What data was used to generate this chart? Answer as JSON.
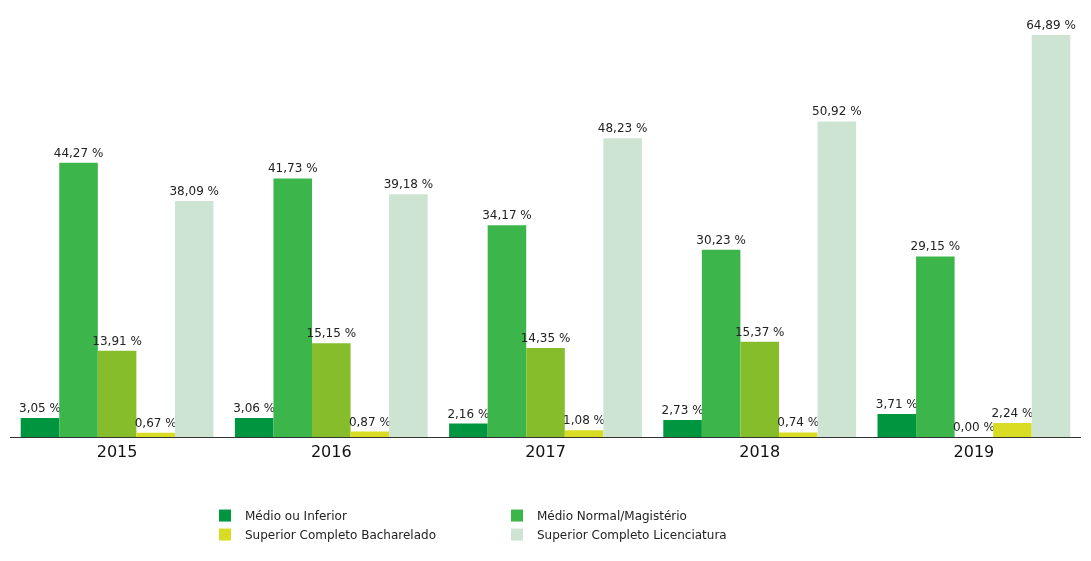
{
  "chart_data": {
    "type": "bar",
    "categories": [
      "2015",
      "2016",
      "2017",
      "2018",
      "2019"
    ],
    "legend": "bottom",
    "series": [
      {
        "name": "Médio ou Inferior",
        "color": "#009640",
        "values": [
          3.05,
          3.06,
          2.16,
          2.73,
          3.71
        ],
        "value_labels": [
          "3,05 %",
          "3,06 %",
          "2,16 %",
          "2,73 %",
          "3,71 %"
        ]
      },
      {
        "name": "Médio Normal/Magistério",
        "color": "#3cb54a",
        "values": [
          44.27,
          41.73,
          34.17,
          30.23,
          29.15
        ],
        "value_labels": [
          "44,27 %",
          "41,73 %",
          "34,17 %",
          "30,23 %",
          "29,15 %"
        ]
      },
      {
        "color": "#86bd2a",
        "values": [
          13.91,
          15.15,
          14.35,
          15.37,
          0
        ],
        "value_labels": [
          "13,91 %",
          "15,15 %",
          "14,35 %",
          "15,37 %",
          "0,00 %"
        ]
      },
      {
        "name": "Superior Completo Bacharelado",
        "color": "#d8dc22",
        "values": [
          0.67,
          0.87,
          1.08,
          0.74,
          2.24
        ],
        "value_labels": [
          "0,67 %",
          "0,87 %",
          "1,08 %",
          "0,74 %",
          "2,24 %"
        ]
      },
      {
        "name": "Superior Completo Licenciatura",
        "color": "#cde4d2",
        "values": [
          38.09,
          39.18,
          48.23,
          50.92,
          64.89
        ],
        "value_labels": [
          "38,09 %",
          "39,18 %",
          "48,23 %",
          "50,92 %",
          "64,89 %"
        ]
      }
    ]
  }
}
